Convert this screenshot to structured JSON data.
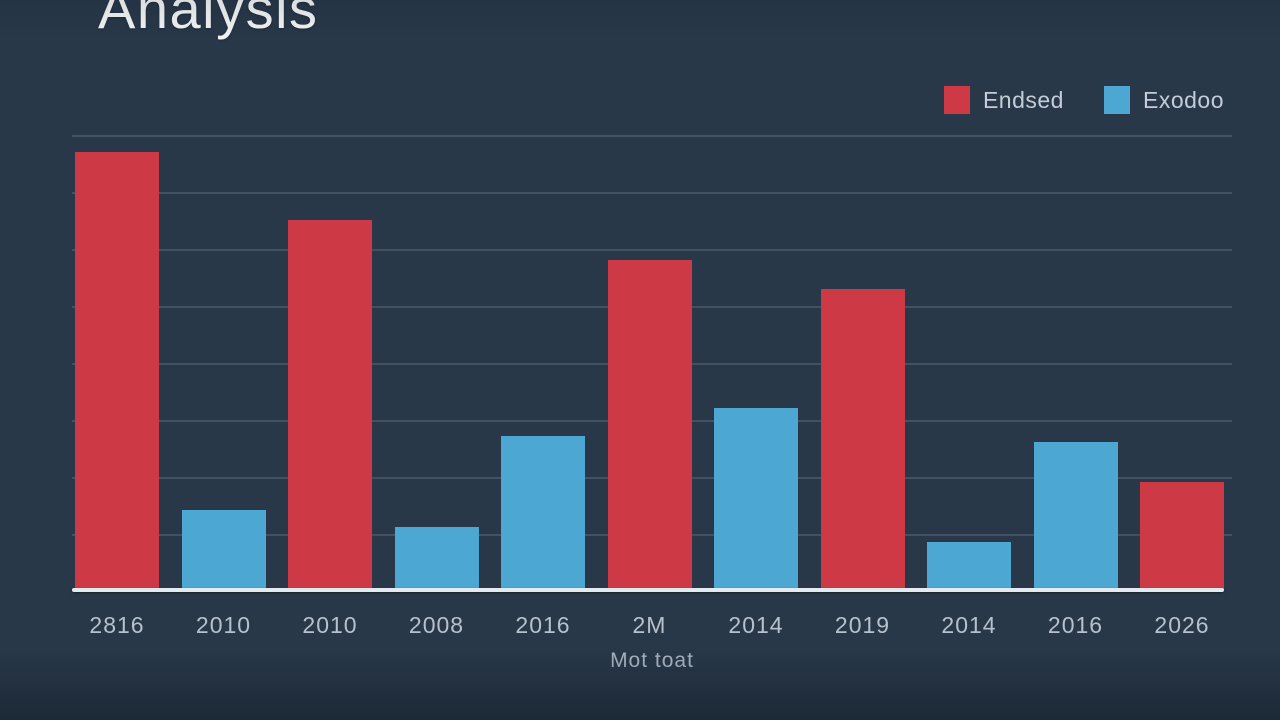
{
  "page": {
    "background_color": "#283849"
  },
  "chart_data": {
    "type": "bar",
    "title": "Analysis",
    "xlabel": "Mot toat",
    "ylabel": "",
    "ylim": [
      0,
      80
    ],
    "grid": true,
    "gridline_count": 8,
    "legend_position": "top-right",
    "axis_line_color": "#e3eaf0",
    "tick_label_color": "#b6c1cc",
    "series": [
      {
        "name": "Endsed",
        "color": "#cd3a46"
      },
      {
        "name": "Exodoo",
        "color": "#4da7d3"
      }
    ],
    "categories": [
      "2816",
      "2010",
      "2010",
      "2008",
      "2016",
      "2M",
      "2014",
      "2019",
      "2014",
      "2016",
      "2026"
    ],
    "bars": [
      {
        "category": "2816",
        "series": "Endsed",
        "value": 77
      },
      {
        "category": "2010",
        "series": "Exodoo",
        "value": 14
      },
      {
        "category": "2010",
        "series": "Endsed",
        "value": 65
      },
      {
        "category": "2008",
        "series": "Exodoo",
        "value": 11
      },
      {
        "category": "2016",
        "series": "Exodoo",
        "value": 27
      },
      {
        "category": "2M",
        "series": "Endsed",
        "value": 58
      },
      {
        "category": "2014",
        "series": "Exodoo",
        "value": 32
      },
      {
        "category": "2019",
        "series": "Endsed",
        "value": 53
      },
      {
        "category": "2014",
        "series": "Exodoo",
        "value": 8.5
      },
      {
        "category": "2016",
        "series": "Exodoo",
        "value": 26
      },
      {
        "category": "2026",
        "series": "Endsed",
        "value": 19
      }
    ]
  }
}
